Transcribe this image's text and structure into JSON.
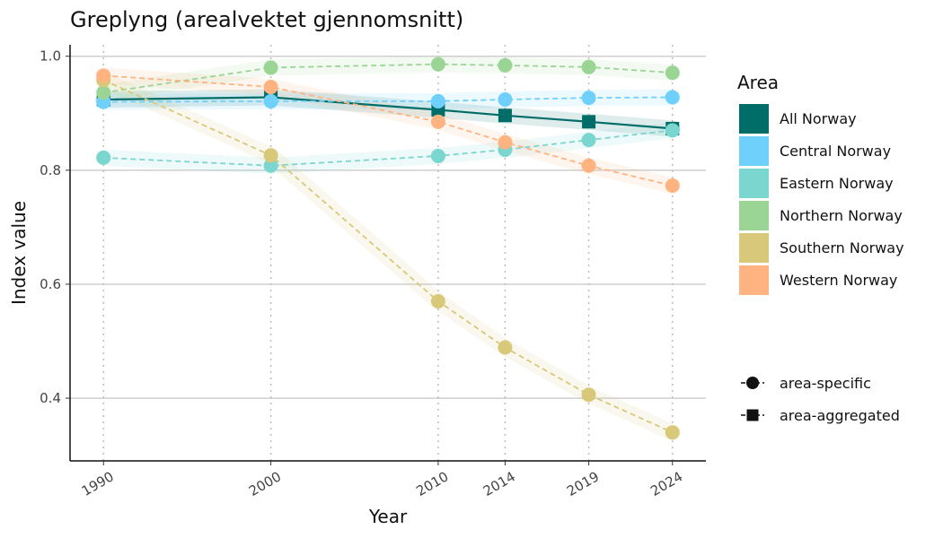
{
  "chart_data": {
    "type": "line",
    "title": "Greplyng (arealvektet gjennomsnitt)",
    "xlabel": "Year",
    "ylabel": "Index value",
    "x": [
      1990,
      2000,
      2010,
      2014,
      2019,
      2024
    ],
    "x_ticks": [
      "1990",
      "2000",
      "2010",
      "2014",
      "2019",
      "2024"
    ],
    "y_ticks": [
      "0.4",
      "0.6",
      "0.8",
      "1.0"
    ],
    "xlim": [
      1988,
      2026
    ],
    "ylim": [
      0.29,
      1.02
    ],
    "grid": true,
    "legend_position": "right",
    "legend_title": "Area",
    "series": [
      {
        "name": "All Norway",
        "color": "#006D68",
        "marker": "square",
        "line": "solid",
        "values": [
          0.924,
          0.928,
          0.906,
          0.896,
          0.885,
          0.873
        ]
      },
      {
        "name": "Central Norway",
        "color": "#6FD0FC",
        "marker": "circle",
        "line": "dashed",
        "values": [
          0.92,
          0.921,
          0.921,
          0.924,
          0.927,
          0.928
        ]
      },
      {
        "name": "Eastern Norway",
        "color": "#7BD6CF",
        "marker": "circle",
        "line": "dashed",
        "values": [
          0.822,
          0.808,
          0.825,
          0.836,
          0.853,
          0.87
        ]
      },
      {
        "name": "Northern Norway",
        "color": "#9BD595",
        "marker": "circle",
        "line": "dashed",
        "values": [
          0.936,
          0.98,
          0.986,
          0.984,
          0.981,
          0.971
        ]
      },
      {
        "name": "Southern Norway",
        "color": "#D8C87A",
        "marker": "circle",
        "line": "dashed",
        "values": [
          0.958,
          0.826,
          0.57,
          0.489,
          0.406,
          0.34
        ]
      },
      {
        "name": "Western Norway",
        "color": "#FFB380",
        "marker": "circle",
        "line": "dashed",
        "values": [
          0.966,
          0.946,
          0.885,
          0.849,
          0.808,
          0.773
        ]
      }
    ],
    "shape_legend": [
      {
        "label": "area-specific",
        "marker": "circle"
      },
      {
        "label": "area-aggregated",
        "marker": "square"
      }
    ]
  }
}
